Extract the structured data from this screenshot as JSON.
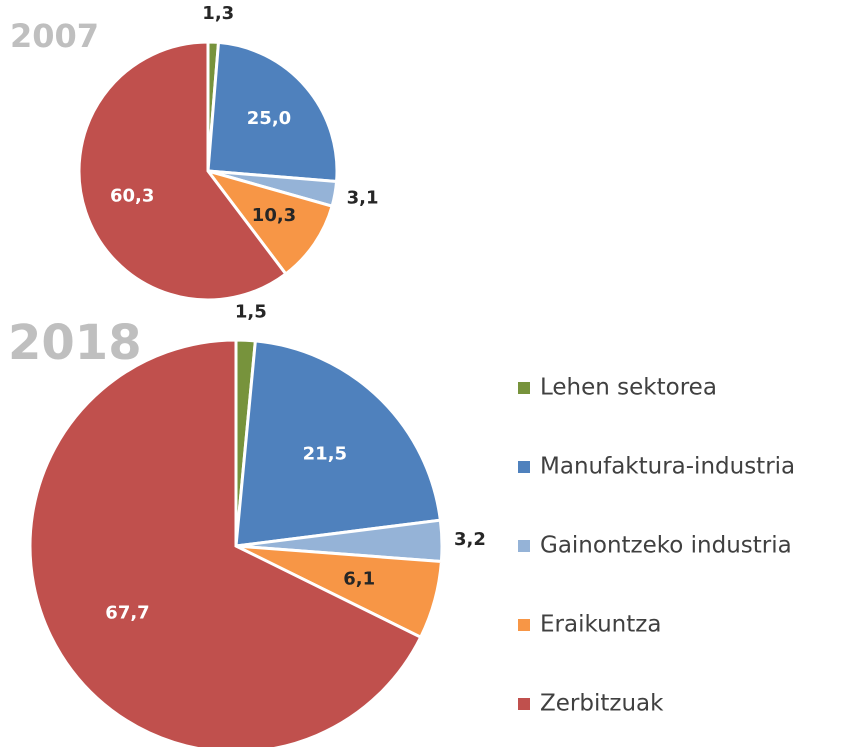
{
  "chart_data": [
    {
      "type": "pie",
      "title": "2007",
      "values": [
        1.3,
        25.0,
        3.1,
        10.3,
        60.3
      ],
      "value_labels": [
        "1,3",
        "25,0",
        "3,1",
        "10,3",
        "60,3"
      ]
    },
    {
      "type": "pie",
      "title": "2018",
      "values": [
        1.5,
        21.5,
        3.2,
        6.1,
        67.7
      ],
      "value_labels": [
        "1,5",
        "21,5",
        "3,2",
        "6,1",
        "67,7"
      ]
    }
  ],
  "legend": {
    "categories": [
      "Lehen sektorea",
      "Manufaktura-industria",
      "Gainontzeko industria",
      "Eraikuntza",
      "Zerbitzuak"
    ],
    "colors": [
      "#77933c",
      "#4f81bd",
      "#95b3d7",
      "#f79646",
      "#c0504d"
    ]
  }
}
